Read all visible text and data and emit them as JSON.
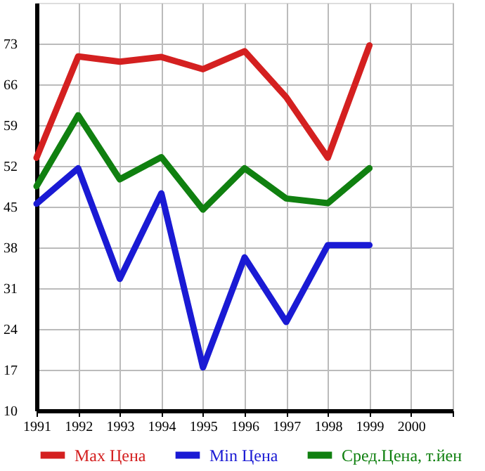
{
  "chart_data": {
    "type": "line",
    "x": [
      1991,
      1992,
      1993,
      1994,
      1995,
      1996,
      1997,
      1998,
      1999
    ],
    "series": [
      {
        "name": "Max Цена",
        "color": "#d42020",
        "values": [
          53.4,
          70.8,
          69.9,
          70.7,
          68.6,
          71.7,
          63.8,
          53.4,
          72.7
        ]
      },
      {
        "name": "Min Цена",
        "color": "#1a1ad4",
        "values": [
          45.5,
          51.6,
          32.6,
          47.3,
          17.4,
          36.3,
          25.2,
          38.4,
          38.4
        ]
      },
      {
        "name": "Сред.Цена, т.йен",
        "color": "#108010",
        "values": [
          48.5,
          60.7,
          49.7,
          53.5,
          44.5,
          51.6,
          46.4,
          45.6,
          51.6
        ]
      }
    ],
    "xlim": [
      1991,
      2001
    ],
    "xticks": [
      1991,
      1992,
      1993,
      1994,
      1995,
      1996,
      1997,
      1998,
      1999,
      2000,
      {
        "value": 2001,
        "label": null
      }
    ],
    "ylim": [
      10,
      80
    ],
    "yticks": [
      10,
      17,
      24,
      31,
      38,
      45,
      52,
      59,
      66,
      73
    ],
    "grid": true,
    "legend": "bottom",
    "marker": "none",
    "line_style": "solid"
  }
}
